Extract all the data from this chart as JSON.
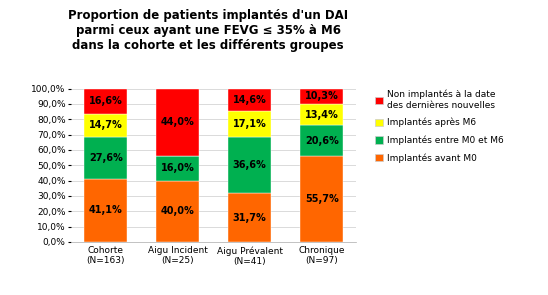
{
  "title": "Proportion de patients implantés d'un DAI\nparmi ceux ayant une FEVG ≤ 35% à M6\ndans la cohorte et les différents groupes",
  "categories": [
    "Cohorte\n(N=163)",
    "Aigu Incident\n(N=25)",
    "Aigu Prévalent\n(N=41)",
    "Chronique\n(N=97)"
  ],
  "segments": {
    "orange": [
      41.1,
      40.0,
      31.7,
      55.7
    ],
    "green": [
      27.6,
      16.0,
      36.6,
      20.6
    ],
    "yellow": [
      14.7,
      0.0,
      17.1,
      13.4
    ],
    "red": [
      16.6,
      44.0,
      14.6,
      10.3
    ]
  },
  "labels": {
    "orange": [
      "41,1%",
      "40,0%",
      "31,7%",
      "55,7%"
    ],
    "green": [
      "27,6%",
      "16,0%",
      "36,6%",
      "20,6%"
    ],
    "yellow": [
      "14,7%",
      "",
      "17,1%",
      "13,4%"
    ],
    "red": [
      "16,6%",
      "44,0%",
      "14,6%",
      "10,3%"
    ]
  },
  "colors": {
    "orange": "#FF6600",
    "green": "#00B050",
    "yellow": "#FFFF00",
    "red": "#FF0000"
  },
  "legend_labels": [
    "Non implantés à la date\ndes dernières nouvelles",
    "Implantés après M6",
    "Implantés entre M0 et M6",
    "Implantés avant M0"
  ],
  "legend_colors": [
    "#FF0000",
    "#FFFF00",
    "#00B050",
    "#FF6600"
  ],
  "yticks": [
    0.0,
    10.0,
    20.0,
    30.0,
    40.0,
    50.0,
    60.0,
    70.0,
    80.0,
    90.0,
    100.0
  ],
  "ytick_labels": [
    "0,0%",
    "10,0%",
    "20,0%",
    "30,0%",
    "40,0%",
    "50,0%",
    "60,0%",
    "70,0%",
    "80,0%",
    "90,0%",
    "100,0%"
  ],
  "title_fontsize": 8.5,
  "label_fontsize": 7,
  "tick_fontsize": 6.5,
  "legend_fontsize": 6.5
}
